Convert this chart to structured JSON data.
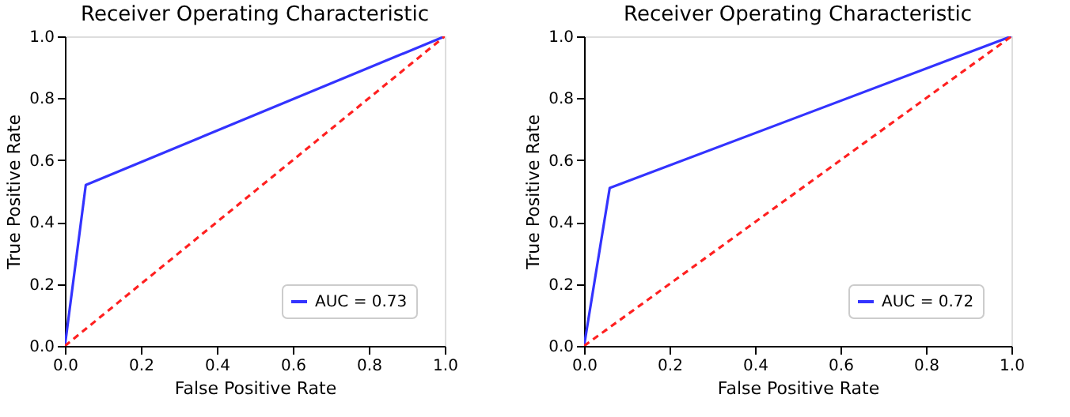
{
  "chart_data": [
    {
      "type": "line",
      "title": "Receiver Operating Characteristic",
      "xlabel": "False Positive Rate",
      "ylabel": "True Positive Rate",
      "xlim": [
        0,
        1
      ],
      "ylim": [
        0,
        1
      ],
      "xticks": [
        {
          "value": 0,
          "label": "0.0"
        },
        {
          "value": 0.2,
          "label": "0.2"
        },
        {
          "value": 0.4,
          "label": "0.4"
        },
        {
          "value": 0.6,
          "label": "0.6"
        },
        {
          "value": 0.8,
          "label": "0.8"
        },
        {
          "value": 1,
          "label": "1.0"
        }
      ],
      "yticks": [
        {
          "value": 0,
          "label": "0.0"
        },
        {
          "value": 0.2,
          "label": "0.2"
        },
        {
          "value": 0.4,
          "label": "0.4"
        },
        {
          "value": 0.6,
          "label": "0.6"
        },
        {
          "value": 0.8,
          "label": "0.8"
        },
        {
          "value": 1,
          "label": "1.0"
        }
      ],
      "series": [
        {
          "name": "AUC = 0.73",
          "color": "#3333ff",
          "x": [
            0,
            0.055,
            1
          ],
          "values": [
            0,
            0.52,
            1
          ],
          "line_style": "solid"
        },
        {
          "color": "#ff2020",
          "x": [
            0,
            1
          ],
          "values": [
            0,
            1
          ],
          "line_style": "dashed"
        }
      ],
      "legend": "bottom right",
      "grid": false,
      "marker": "none"
    },
    {
      "type": "line",
      "title": "Receiver Operating Characteristic",
      "xlabel": "False Positive Rate",
      "ylabel": "True Positive Rate",
      "xlim": [
        0,
        1
      ],
      "ylim": [
        0,
        1
      ],
      "xticks": [
        {
          "value": 0,
          "label": "0.0"
        },
        {
          "value": 0.2,
          "label": "0.2"
        },
        {
          "value": 0.4,
          "label": "0.4"
        },
        {
          "value": 0.6,
          "label": "0.6"
        },
        {
          "value": 0.8,
          "label": "0.8"
        },
        {
          "value": 1,
          "label": "1.0"
        }
      ],
      "yticks": [
        {
          "value": 0,
          "label": "0.0"
        },
        {
          "value": 0.2,
          "label": "0.2"
        },
        {
          "value": 0.4,
          "label": "0.4"
        },
        {
          "value": 0.6,
          "label": "0.6"
        },
        {
          "value": 0.8,
          "label": "0.8"
        },
        {
          "value": 1,
          "label": "1.0"
        }
      ],
      "series": [
        {
          "name": "AUC = 0.72",
          "color": "#3333ff",
          "x": [
            0,
            0.06,
            1
          ],
          "values": [
            0,
            0.51,
            1
          ],
          "line_style": "solid"
        },
        {
          "color": "#ff2020",
          "x": [
            0,
            1
          ],
          "values": [
            0,
            1
          ],
          "line_style": "dashed"
        }
      ],
      "legend": "bottom right",
      "grid": false,
      "marker": "none"
    }
  ]
}
